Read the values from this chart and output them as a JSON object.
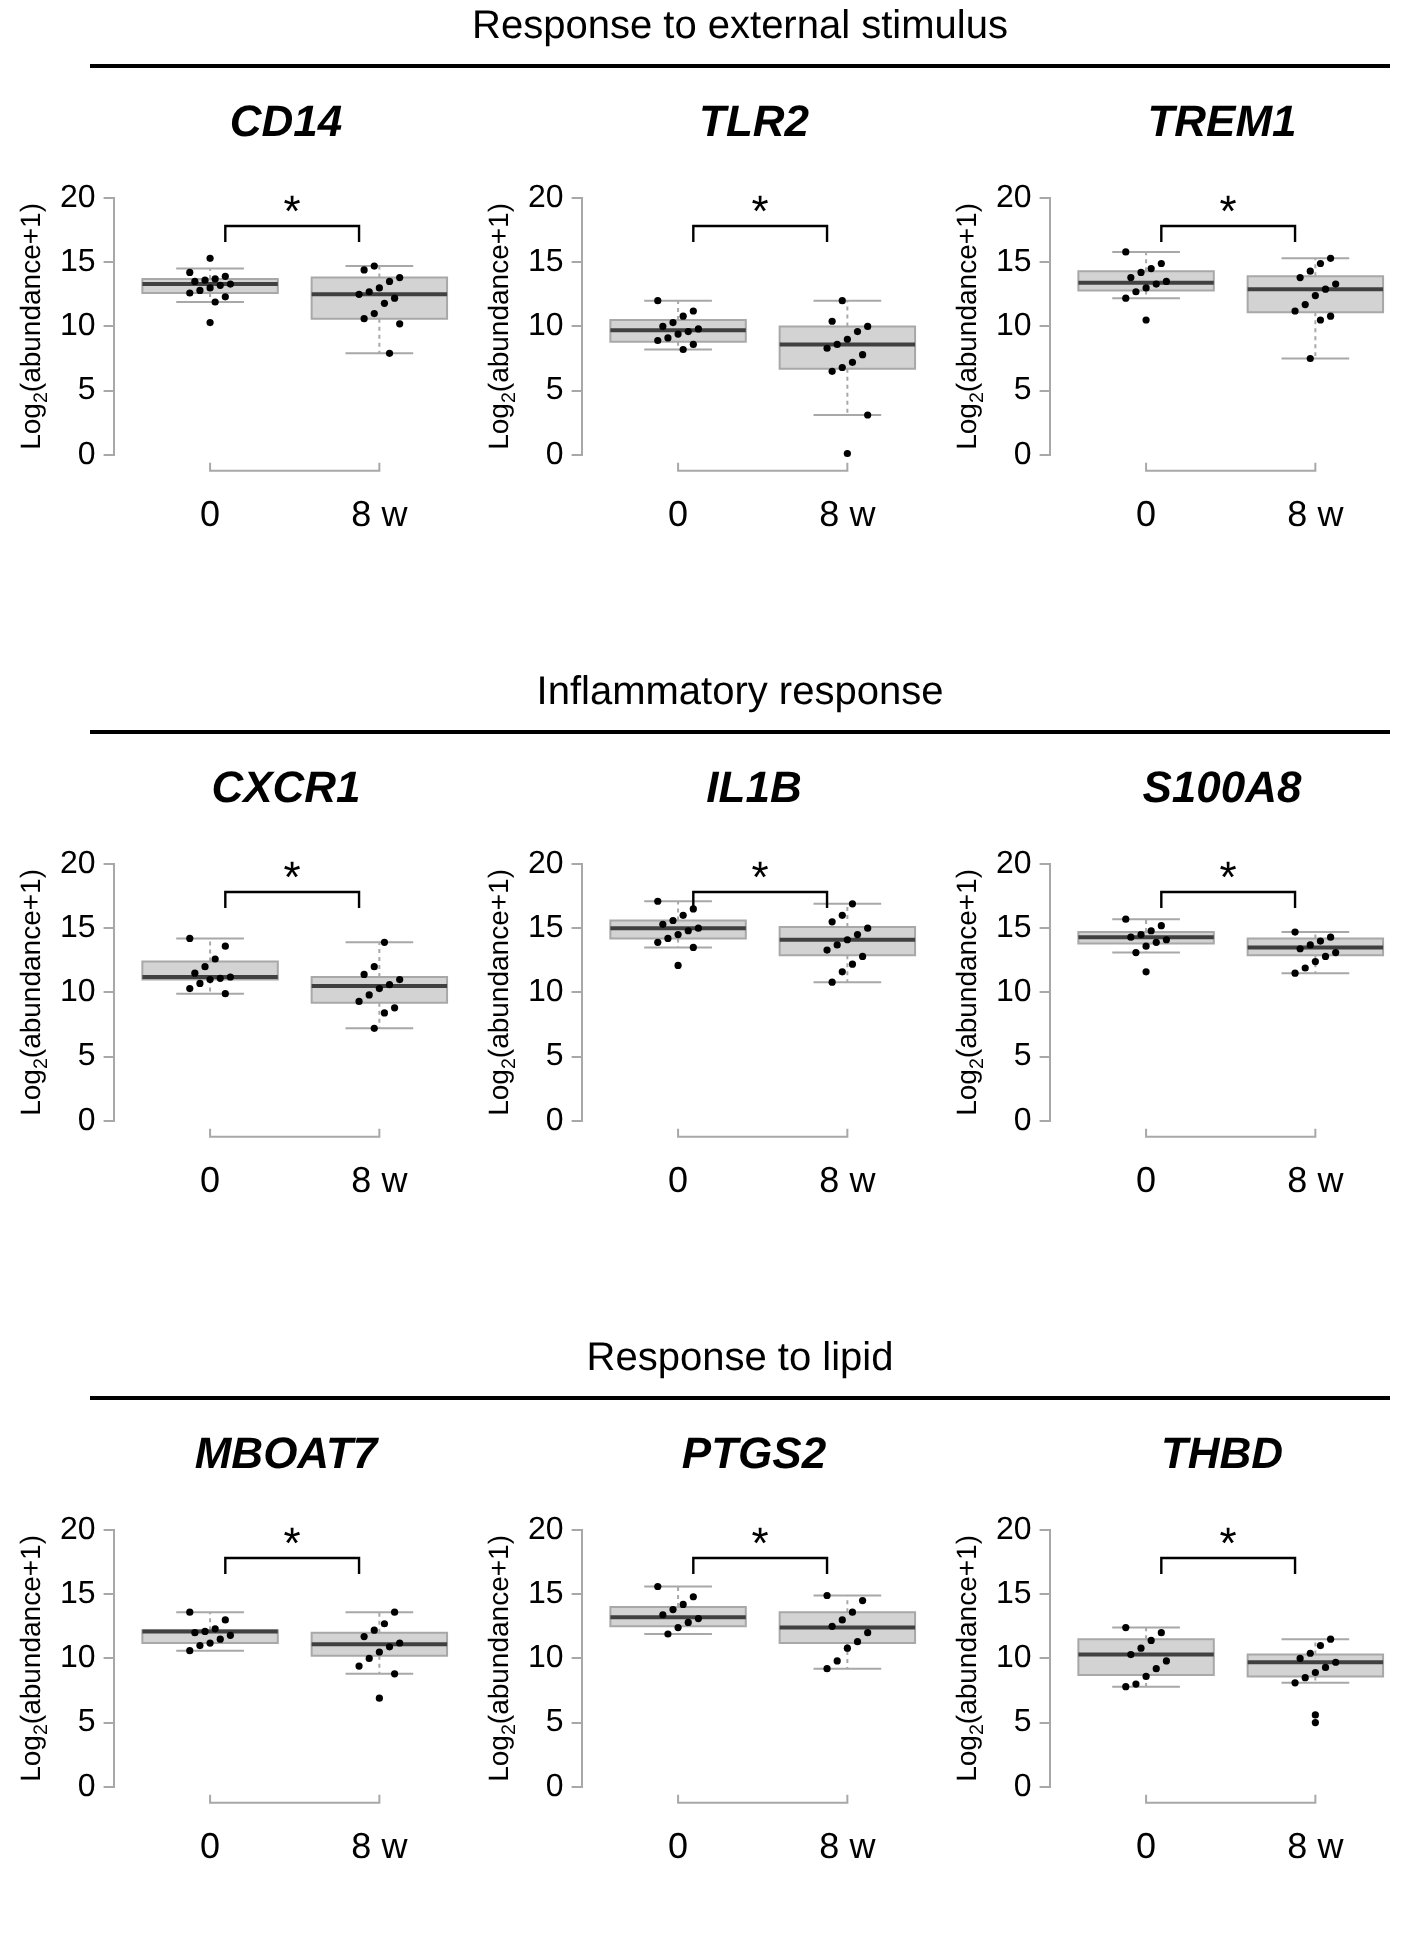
{
  "chart_data": [
    {
      "type": "other",
      "title": "Response to external stimulus"
    },
    {
      "type": "box",
      "title": "CD14",
      "ylabel": "Log$_{2}$(abundance+1)",
      "categories": [
        "0",
        "8 w"
      ],
      "ylim": [
        0,
        20
      ],
      "yticks": [
        0,
        5,
        10,
        15,
        20
      ],
      "color": "#d3d3d3",
      "annotations": [
        "*"
      ],
      "boxes": [
        {
          "low": 11.9,
          "q1": 12.6,
          "median": 13.3,
          "q3": 13.7,
          "high": 14.5,
          "outliers": [
            15.3,
            10.3
          ]
        },
        {
          "low": 7.9,
          "q1": 10.6,
          "median": 12.5,
          "q3": 13.8,
          "high": 14.7
        }
      ],
      "series": [
        {
          "type": "scatter",
          "color": "#000000",
          "x": [
            "0",
            "0",
            "0",
            "0",
            "0",
            "0",
            "0",
            "0",
            "0",
            "0",
            "0",
            "0",
            "8 w",
            "8 w",
            "8 w",
            "8 w",
            "8 w",
            "8 w",
            "8 w",
            "8 w",
            "8 w",
            "8 w",
            "8 w",
            "8 w",
            "8 w"
          ],
          "values": [
            14.2,
            13.9,
            13.7,
            13.6,
            13.5,
            13.3,
            13.2,
            13.0,
            12.8,
            12.6,
            12.3,
            11.9,
            14.7,
            14.4,
            13.8,
            13.5,
            13.0,
            12.7,
            12.5,
            12.2,
            11.8,
            11.0,
            10.6,
            10.2,
            7.9
          ]
        }
      ]
    },
    {
      "type": "box",
      "title": "TLR2",
      "ylabel": "Log$_{2}$(abundance+1)",
      "categories": [
        "0",
        "8 w"
      ],
      "ylim": [
        0,
        20
      ],
      "yticks": [
        0,
        5,
        10,
        15,
        20
      ],
      "color": "#d3d3d3",
      "annotations": [
        "*"
      ],
      "boxes": [
        {
          "low": 8.2,
          "q1": 8.8,
          "median": 9.7,
          "q3": 10.5,
          "high": 12.0
        },
        {
          "low": 3.1,
          "q1": 6.7,
          "median": 8.6,
          "q3": 10.0,
          "high": 12.0,
          "outliers": [
            0.1
          ]
        }
      ],
      "series": [
        {
          "type": "scatter",
          "color": "#000000",
          "x": [
            "0",
            "0",
            "0",
            "0",
            "0",
            "0",
            "0",
            "0",
            "0",
            "0",
            "0",
            "0",
            "8 w",
            "8 w",
            "8 w",
            "8 w",
            "8 w",
            "8 w",
            "8 w",
            "8 w",
            "8 w",
            "8 w",
            "8 w",
            "8 w"
          ],
          "values": [
            12.0,
            11.2,
            10.8,
            10.3,
            10.0,
            9.8,
            9.6,
            9.4,
            9.1,
            8.9,
            8.6,
            8.2,
            12.0,
            10.4,
            10.0,
            9.6,
            9.0,
            8.6,
            8.3,
            7.8,
            7.2,
            6.8,
            6.5,
            3.1
          ]
        }
      ]
    },
    {
      "type": "box",
      "title": "TREM1",
      "ylabel": "Log$_{2}$(abundance+1)",
      "categories": [
        "0",
        "8 w"
      ],
      "ylim": [
        0,
        20
      ],
      "yticks": [
        0,
        5,
        10,
        15,
        20
      ],
      "color": "#d3d3d3",
      "annotations": [
        "*"
      ],
      "boxes": [
        {
          "low": 12.2,
          "q1": 12.8,
          "median": 13.4,
          "q3": 14.3,
          "high": 15.8,
          "outliers": [
            10.5
          ]
        },
        {
          "low": 7.5,
          "q1": 11.1,
          "median": 12.9,
          "q3": 13.9,
          "high": 15.3
        }
      ],
      "series": [
        {
          "type": "scatter",
          "color": "#000000",
          "x": [
            "0",
            "0",
            "0",
            "0",
            "0",
            "0",
            "0",
            "0",
            "0",
            "0",
            "8 w",
            "8 w",
            "8 w",
            "8 w",
            "8 w",
            "8 w",
            "8 w",
            "8 w",
            "8 w",
            "8 w",
            "8 w",
            "8 w"
          ],
          "values": [
            15.8,
            14.9,
            14.5,
            14.2,
            13.8,
            13.5,
            13.3,
            13.0,
            12.7,
            12.2,
            15.3,
            14.9,
            14.3,
            13.8,
            13.3,
            12.9,
            12.4,
            11.7,
            11.2,
            10.8,
            10.5,
            7.5
          ]
        }
      ]
    },
    {
      "type": "other",
      "title": "Inflammatory response"
    },
    {
      "type": "box",
      "title": "CXCR1",
      "ylabel": "Log$_{2}$(abundance+1)",
      "categories": [
        "0",
        "8 w"
      ],
      "ylim": [
        0,
        20
      ],
      "yticks": [
        0,
        5,
        10,
        15,
        20
      ],
      "color": "#d3d3d3",
      "annotations": [
        "*"
      ],
      "boxes": [
        {
          "low": 9.9,
          "q1": 11.0,
          "median": 11.2,
          "q3": 12.4,
          "high": 14.2
        },
        {
          "low": 7.2,
          "q1": 9.2,
          "median": 10.5,
          "q3": 11.2,
          "high": 13.9
        }
      ],
      "series": [
        {
          "type": "scatter",
          "color": "#000000",
          "x": [
            "0",
            "0",
            "0",
            "0",
            "0",
            "0",
            "0",
            "0",
            "0",
            "0",
            "0",
            "8 w",
            "8 w",
            "8 w",
            "8 w",
            "8 w",
            "8 w",
            "8 w",
            "8 w",
            "8 w",
            "8 w",
            "8 w"
          ],
          "values": [
            14.2,
            13.6,
            12.6,
            12.0,
            11.5,
            11.2,
            11.1,
            11.0,
            10.7,
            10.3,
            9.9,
            13.9,
            12.0,
            11.4,
            11.0,
            10.6,
            10.3,
            9.8,
            9.3,
            8.8,
            8.4,
            7.2
          ]
        }
      ]
    },
    {
      "type": "box",
      "title": "IL1B",
      "ylabel": "Log$_{2}$(abundance+1)",
      "categories": [
        "0",
        "8 w"
      ],
      "ylim": [
        0,
        20
      ],
      "yticks": [
        0,
        5,
        10,
        15,
        20
      ],
      "color": "#d3d3d3",
      "annotations": [
        "*"
      ],
      "boxes": [
        {
          "low": 13.5,
          "q1": 14.2,
          "median": 15.0,
          "q3": 15.6,
          "high": 17.1,
          "outliers": [
            12.1
          ]
        },
        {
          "low": 10.8,
          "q1": 12.9,
          "median": 14.1,
          "q3": 15.1,
          "high": 16.9
        }
      ],
      "series": [
        {
          "type": "scatter",
          "color": "#000000",
          "x": [
            "0",
            "0",
            "0",
            "0",
            "0",
            "0",
            "0",
            "0",
            "0",
            "0",
            "0",
            "8 w",
            "8 w",
            "8 w",
            "8 w",
            "8 w",
            "8 w",
            "8 w",
            "8 w",
            "8 w",
            "8 w",
            "8 w",
            "8 w"
          ],
          "values": [
            17.1,
            16.5,
            16.0,
            15.6,
            15.3,
            15.0,
            14.8,
            14.5,
            14.2,
            13.9,
            13.5,
            16.9,
            16.0,
            15.5,
            15.0,
            14.5,
            14.1,
            13.7,
            13.3,
            12.8,
            12.2,
            11.6,
            10.8
          ]
        }
      ]
    },
    {
      "type": "box",
      "title": "S100A8",
      "ylabel": "Log$_{2}$(abundance+1)",
      "categories": [
        "0",
        "8 w"
      ],
      "ylim": [
        0,
        20
      ],
      "yticks": [
        0,
        5,
        10,
        15,
        20
      ],
      "color": "#d3d3d3",
      "annotations": [
        "*"
      ],
      "boxes": [
        {
          "low": 13.1,
          "q1": 13.8,
          "median": 14.3,
          "q3": 14.7,
          "high": 15.7,
          "outliers": [
            11.6
          ]
        },
        {
          "low": 11.5,
          "q1": 12.9,
          "median": 13.5,
          "q3": 14.2,
          "high": 14.7
        }
      ],
      "series": [
        {
          "type": "scatter",
          "color": "#000000",
          "x": [
            "0",
            "0",
            "0",
            "0",
            "0",
            "0",
            "0",
            "0",
            "0",
            "8 w",
            "8 w",
            "8 w",
            "8 w",
            "8 w",
            "8 w",
            "8 w",
            "8 w",
            "8 w",
            "8 w"
          ],
          "values": [
            15.7,
            15.2,
            14.8,
            14.5,
            14.3,
            14.1,
            13.9,
            13.6,
            13.1,
            14.7,
            14.3,
            14.0,
            13.7,
            13.4,
            13.1,
            12.8,
            12.4,
            11.9,
            11.5
          ]
        }
      ]
    },
    {
      "type": "other",
      "title": "Response to lipid"
    },
    {
      "type": "box",
      "title": "MBOAT7",
      "ylabel": "Log$_{2}$(abundance+1)",
      "categories": [
        "0",
        "8 w"
      ],
      "ylim": [
        0,
        20
      ],
      "yticks": [
        0,
        5,
        10,
        15,
        20
      ],
      "color": "#d3d3d3",
      "annotations": [
        "*"
      ],
      "boxes": [
        {
          "low": 10.6,
          "q1": 11.2,
          "median": 12.1,
          "q3": 12.2,
          "high": 13.6
        },
        {
          "low": 8.8,
          "q1": 10.2,
          "median": 11.1,
          "q3": 12.0,
          "high": 13.6,
          "outliers": [
            6.9
          ]
        }
      ],
      "series": [
        {
          "type": "scatter",
          "color": "#000000",
          "x": [
            "0",
            "0",
            "0",
            "0",
            "0",
            "0",
            "0",
            "0",
            "0",
            "0",
            "8 w",
            "8 w",
            "8 w",
            "8 w",
            "8 w",
            "8 w",
            "8 w",
            "8 w",
            "8 w",
            "8 w"
          ],
          "values": [
            13.6,
            13.0,
            12.3,
            12.1,
            12.0,
            11.8,
            11.5,
            11.2,
            11.0,
            10.6,
            13.6,
            12.7,
            12.2,
            11.7,
            11.2,
            10.9,
            10.5,
            10.0,
            9.4,
            8.8
          ]
        }
      ]
    },
    {
      "type": "box",
      "title": "PTGS2",
      "ylabel": "Log$_{2}$(abundance+1)",
      "categories": [
        "0",
        "8 w"
      ],
      "ylim": [
        0,
        20
      ],
      "yticks": [
        0,
        5,
        10,
        15,
        20
      ],
      "color": "#d3d3d3",
      "annotations": [
        "*"
      ],
      "boxes": [
        {
          "low": 11.9,
          "q1": 12.5,
          "median": 13.2,
          "q3": 14.0,
          "high": 15.6
        },
        {
          "low": 9.2,
          "q1": 11.2,
          "median": 12.4,
          "q3": 13.6,
          "high": 14.9
        }
      ],
      "series": [
        {
          "type": "scatter",
          "color": "#000000",
          "x": [
            "0",
            "0",
            "0",
            "0",
            "0",
            "0",
            "0",
            "0",
            "0",
            "8 w",
            "8 w",
            "8 w",
            "8 w",
            "8 w",
            "8 w",
            "8 w",
            "8 w",
            "8 w",
            "8 w"
          ],
          "values": [
            15.6,
            14.8,
            14.2,
            13.8,
            13.4,
            13.1,
            12.8,
            12.4,
            11.9,
            14.9,
            14.5,
            13.6,
            13.0,
            12.5,
            12.0,
            11.3,
            10.8,
            9.8,
            9.2
          ]
        }
      ]
    },
    {
      "type": "box",
      "title": "THBD",
      "ylabel": "Log$_{2}$(abundance+1)",
      "categories": [
        "0",
        "8 w"
      ],
      "ylim": [
        0,
        20
      ],
      "yticks": [
        0,
        5,
        10,
        15,
        20
      ],
      "color": "#d3d3d3",
      "annotations": [
        "*"
      ],
      "boxes": [
        {
          "low": 7.8,
          "q1": 8.7,
          "median": 10.3,
          "q3": 11.5,
          "high": 12.4
        },
        {
          "low": 8.1,
          "q1": 8.6,
          "median": 9.7,
          "q3": 10.3,
          "high": 11.5,
          "outliers": [
            5.6,
            5.0
          ]
        }
      ],
      "series": [
        {
          "type": "scatter",
          "color": "#000000",
          "x": [
            "0",
            "0",
            "0",
            "0",
            "0",
            "0",
            "0",
            "0",
            "0",
            "0",
            "8 w",
            "8 w",
            "8 w",
            "8 w",
            "8 w",
            "8 w",
            "8 w",
            "8 w",
            "8 w"
          ],
          "values": [
            12.4,
            12.0,
            11.4,
            10.8,
            10.3,
            9.8,
            9.2,
            8.6,
            8.0,
            7.8,
            11.5,
            11.0,
            10.4,
            10.0,
            9.7,
            9.3,
            8.9,
            8.5,
            8.1
          ]
        }
      ]
    }
  ]
}
